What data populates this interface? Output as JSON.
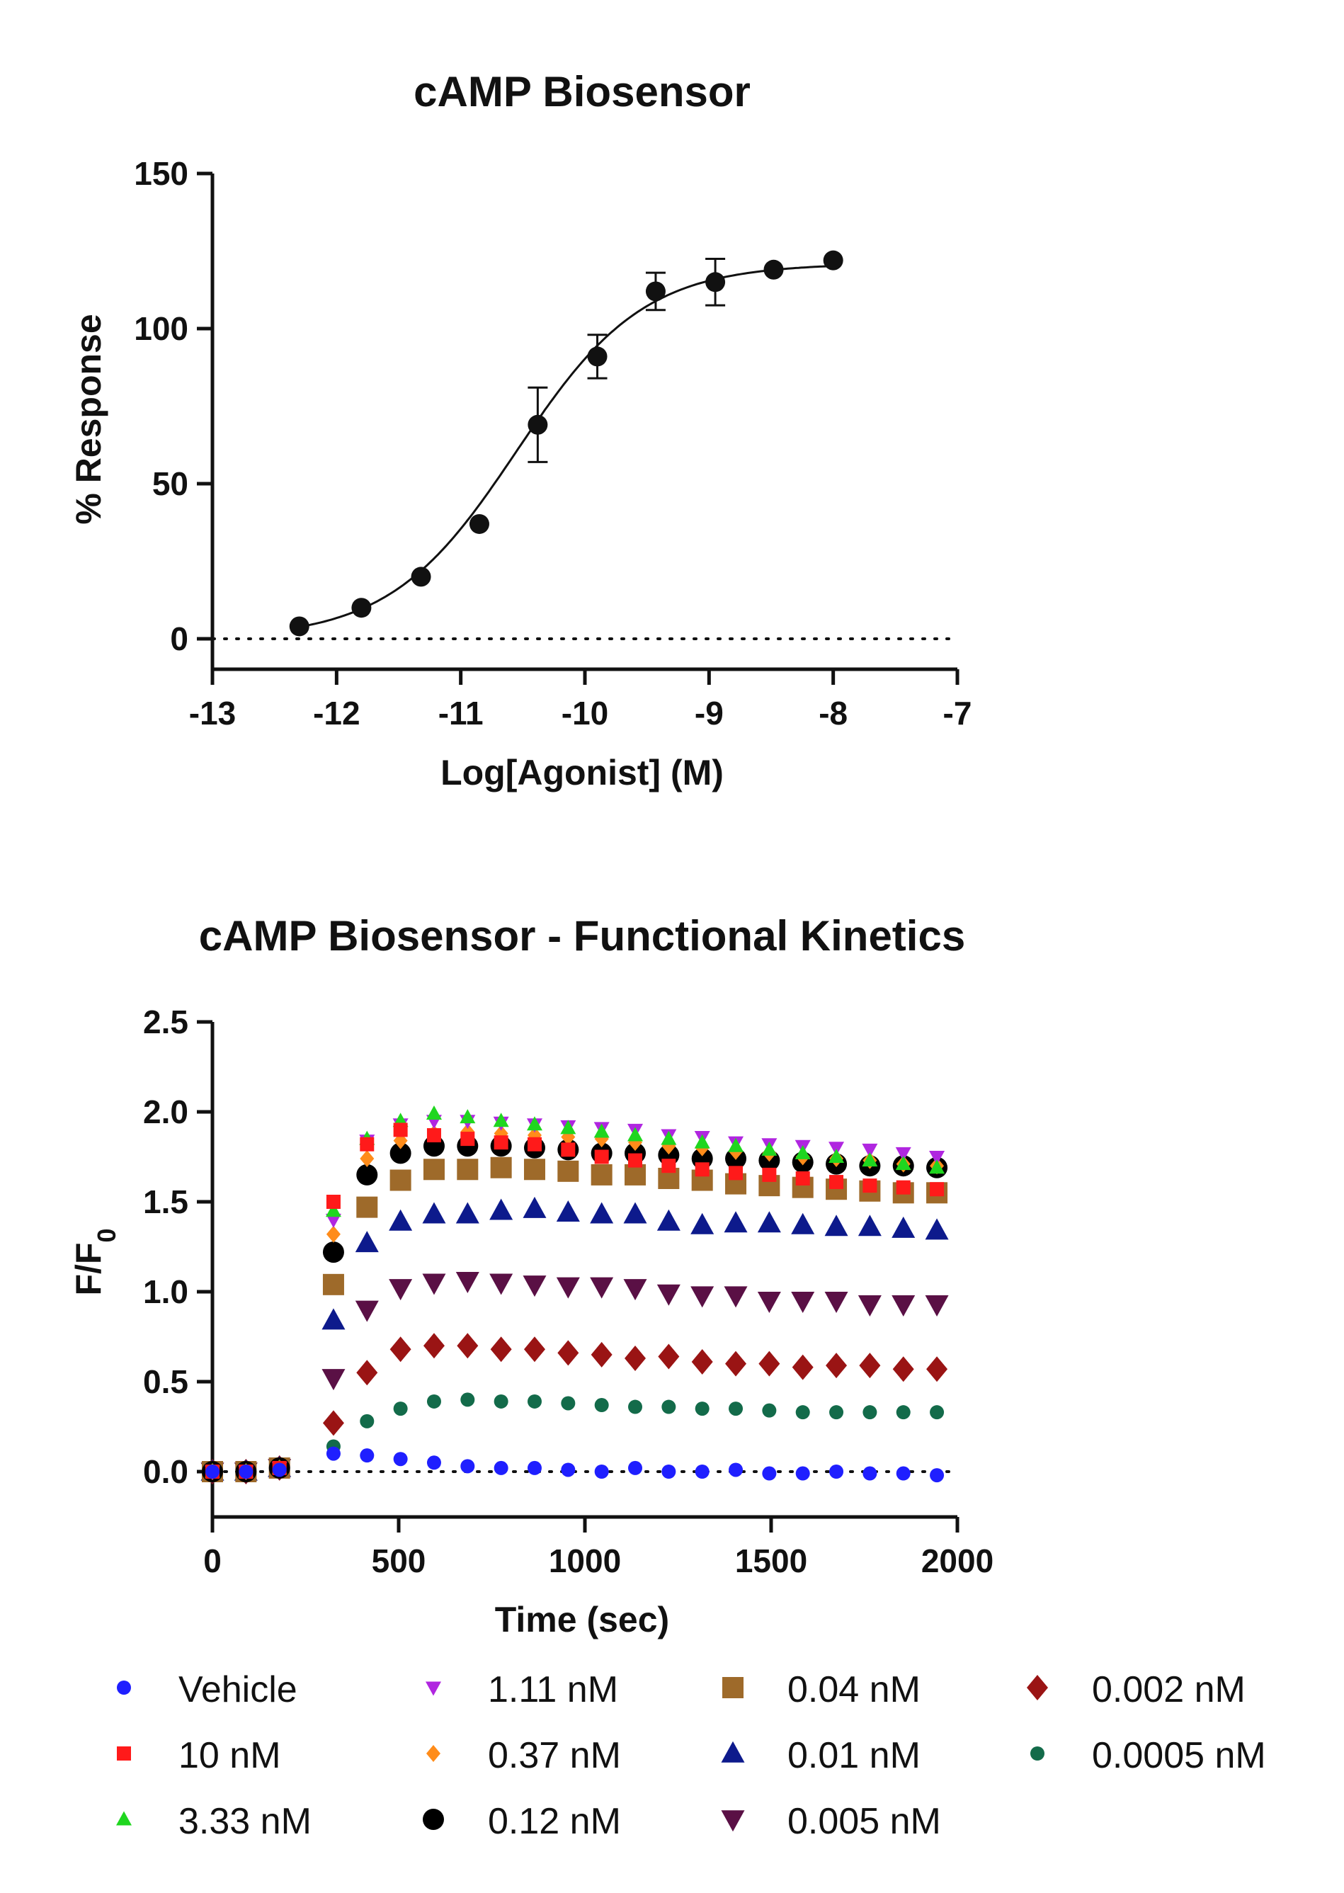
{
  "chart_data": [
    {
      "type": "scatter",
      "title": "cAMP Biosensor",
      "xlabel": "Log[Agonist] (M)",
      "ylabel": "% Response",
      "xlim": [
        -13,
        -7
      ],
      "ylim": [
        -10,
        150
      ],
      "xticks": [
        "-13",
        "-12",
        "-11",
        "-10",
        "-9",
        "-8",
        "-7"
      ],
      "yticks": [
        "0",
        "50",
        "100",
        "150"
      ],
      "series": [
        {
          "name": "Response",
          "x": [
            -12.3,
            -11.8,
            -11.32,
            -10.85,
            -10.38,
            -9.9,
            -9.43,
            -8.95,
            -8.48,
            -8.0
          ],
          "y": [
            4,
            10,
            20,
            37,
            69,
            91,
            112,
            115,
            119,
            122
          ],
          "err": [
            0,
            0,
            0,
            0,
            12,
            7,
            6,
            7.5,
            0,
            0
          ]
        }
      ],
      "fit": {
        "bottom": 0,
        "top": 121,
        "logEC50": -10.55,
        "hill": 0.85
      },
      "baseline": 0
    },
    {
      "type": "scatter",
      "title": "cAMP Biosensor - Functional Kinetics",
      "xlabel": "Time (sec)",
      "ylabel": "F/F",
      "ylabel_subscript": "0",
      "xlim": [
        0,
        2000
      ],
      "ylim": [
        -0.25,
        2.5
      ],
      "xticks": [
        "0",
        "500",
        "1000",
        "1500",
        "2000"
      ],
      "yticks": [
        "0.0",
        "0.5",
        "1.0",
        "1.5",
        "2.0",
        "2.5"
      ],
      "x": [
        0,
        90,
        180,
        325,
        415,
        505,
        595,
        685,
        775,
        865,
        955,
        1045,
        1135,
        1225,
        1315,
        1405,
        1495,
        1585,
        1675,
        1765,
        1855,
        1945
      ],
      "series": [
        {
          "name": "Vehicle",
          "color": "#1f1fff",
          "marker": "circle-small",
          "values": [
            0,
            0,
            0.01,
            0.1,
            0.09,
            0.07,
            0.05,
            0.03,
            0.02,
            0.02,
            0.01,
            0.0,
            0.02,
            0.0,
            0.0,
            0.01,
            -0.01,
            -0.01,
            0.0,
            -0.01,
            -0.01,
            -0.02
          ]
        },
        {
          "name": "10 nM",
          "color": "#ff1a1a",
          "marker": "square-small",
          "values": [
            0,
            0,
            0.02,
            1.5,
            1.82,
            1.9,
            1.87,
            1.85,
            1.83,
            1.82,
            1.79,
            1.75,
            1.73,
            1.7,
            1.68,
            1.66,
            1.65,
            1.63,
            1.61,
            1.59,
            1.58,
            1.57
          ]
        },
        {
          "name": "3.33 nM",
          "color": "#1fd61f",
          "marker": "triangle-up-small",
          "values": [
            0,
            0,
            0.02,
            1.45,
            1.85,
            1.95,
            1.99,
            1.97,
            1.95,
            1.93,
            1.91,
            1.89,
            1.87,
            1.85,
            1.83,
            1.81,
            1.79,
            1.77,
            1.75,
            1.73,
            1.71,
            1.69
          ]
        },
        {
          "name": "1.11 nM",
          "color": "#b026e0",
          "marker": "triangle-down-small",
          "values": [
            0,
            0,
            0.02,
            1.4,
            1.84,
            1.93,
            1.95,
            1.95,
            1.94,
            1.93,
            1.92,
            1.91,
            1.9,
            1.87,
            1.86,
            1.83,
            1.82,
            1.81,
            1.8,
            1.79,
            1.77,
            1.75
          ]
        },
        {
          "name": "0.37 nM",
          "color": "#ff8c1a",
          "marker": "diamond-small",
          "values": [
            0,
            0,
            0.02,
            1.32,
            1.74,
            1.84,
            1.88,
            1.89,
            1.88,
            1.87,
            1.86,
            1.85,
            1.83,
            1.81,
            1.8,
            1.78,
            1.77,
            1.75,
            1.74,
            1.73,
            1.71,
            1.7
          ]
        },
        {
          "name": "0.12 nM",
          "color": "#000000",
          "marker": "circle",
          "values": [
            0,
            0,
            0.02,
            1.22,
            1.65,
            1.77,
            1.81,
            1.81,
            1.81,
            1.8,
            1.79,
            1.77,
            1.77,
            1.76,
            1.74,
            1.74,
            1.73,
            1.72,
            1.71,
            1.7,
            1.7,
            1.69
          ]
        },
        {
          "name": "0.04 nM",
          "color": "#9e6a2a",
          "marker": "square",
          "values": [
            0,
            0,
            0.02,
            1.04,
            1.47,
            1.62,
            1.68,
            1.68,
            1.69,
            1.68,
            1.67,
            1.65,
            1.65,
            1.63,
            1.62,
            1.6,
            1.59,
            1.58,
            1.57,
            1.56,
            1.55,
            1.55
          ]
        },
        {
          "name": "0.01 nM",
          "color": "#0d1a8c",
          "marker": "triangle-up",
          "values": [
            0,
            0,
            0.02,
            0.84,
            1.27,
            1.39,
            1.43,
            1.43,
            1.45,
            1.46,
            1.44,
            1.43,
            1.43,
            1.39,
            1.37,
            1.38,
            1.38,
            1.37,
            1.36,
            1.36,
            1.35,
            1.34
          ]
        },
        {
          "name": "0.005 nM",
          "color": "#5a1045",
          "marker": "triangle-down",
          "values": [
            0,
            0,
            0.02,
            0.52,
            0.9,
            1.02,
            1.05,
            1.06,
            1.05,
            1.04,
            1.03,
            1.03,
            1.02,
            0.99,
            0.98,
            0.98,
            0.95,
            0.95,
            0.95,
            0.93,
            0.93,
            0.93
          ]
        },
        {
          "name": "0.002 nM",
          "color": "#9a1414",
          "marker": "diamond",
          "values": [
            0,
            0,
            0.02,
            0.27,
            0.55,
            0.68,
            0.7,
            0.7,
            0.68,
            0.68,
            0.66,
            0.65,
            0.63,
            0.64,
            0.61,
            0.6,
            0.6,
            0.58,
            0.59,
            0.59,
            0.57,
            0.57
          ]
        },
        {
          "name": "0.0005 nM",
          "color": "#136b4a",
          "marker": "circle-small",
          "values": [
            0,
            0,
            0.02,
            0.14,
            0.28,
            0.35,
            0.39,
            0.4,
            0.39,
            0.39,
            0.38,
            0.37,
            0.36,
            0.36,
            0.35,
            0.35,
            0.34,
            0.33,
            0.33,
            0.33,
            0.33,
            0.33
          ]
        }
      ],
      "baseline": 0
    }
  ]
}
